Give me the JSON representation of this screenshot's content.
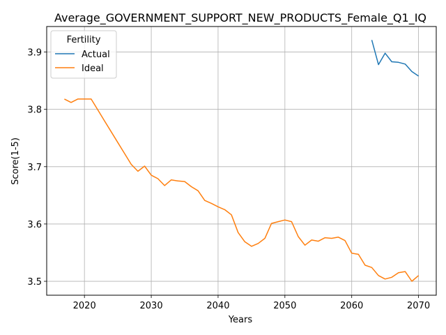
{
  "chart_data": {
    "type": "line",
    "title": "Average_GOVERNMENT_SUPPORT_NEW_PRODUCTS_Female_Q1_IQ",
    "xlabel": "Years",
    "ylabel": "Score(1-5)",
    "xlim": [
      2014.35,
      2072.65
    ],
    "ylim": [
      3.4757,
      3.9445
    ],
    "xticks": [
      2020,
      2030,
      2040,
      2050,
      2060,
      2070
    ],
    "yticks": [
      3.5,
      3.6,
      3.7,
      3.8,
      3.9
    ],
    "ytick_labels": [
      "3.5",
      "3.6",
      "3.7",
      "3.8",
      "3.9"
    ],
    "grid": true,
    "legend": {
      "title": "Fertility",
      "placement": "upper-left"
    },
    "series": [
      {
        "name": "Actual",
        "color": "#1f77b4",
        "x": [
          2063,
          2064,
          2065,
          2066,
          2067,
          2068,
          2069,
          2070
        ],
        "y": [
          3.921,
          3.878,
          3.898,
          3.883,
          3.882,
          3.879,
          3.866,
          3.858
        ]
      },
      {
        "name": "Ideal",
        "color": "#ff7f0e",
        "x": [
          2017,
          2018,
          2019,
          2020,
          2021,
          2022,
          2023,
          2024,
          2025,
          2026,
          2027,
          2028,
          2029,
          2030,
          2031,
          2032,
          2033,
          2034,
          2035,
          2036,
          2037,
          2038,
          2039,
          2040,
          2041,
          2042,
          2043,
          2044,
          2045,
          2046,
          2047,
          2048,
          2049,
          2050,
          2051,
          2052,
          2053,
          2054,
          2055,
          2056,
          2057,
          2058,
          2059,
          2060,
          2061,
          2062,
          2063,
          2064,
          2065,
          2066,
          2067,
          2068,
          2069,
          2070
        ],
        "y": [
          3.818,
          3.812,
          3.818,
          3.818,
          3.818,
          3.799,
          3.78,
          3.761,
          3.742,
          3.723,
          3.704,
          3.692,
          3.701,
          3.685,
          3.679,
          3.667,
          3.677,
          3.675,
          3.674,
          3.665,
          3.658,
          3.641,
          3.636,
          3.63,
          3.625,
          3.616,
          3.585,
          3.569,
          3.561,
          3.566,
          3.575,
          3.601,
          3.604,
          3.607,
          3.604,
          3.578,
          3.563,
          3.572,
          3.57,
          3.576,
          3.575,
          3.577,
          3.571,
          3.549,
          3.547,
          3.528,
          3.524,
          3.51,
          3.504,
          3.507,
          3.515,
          3.517,
          3.5,
          3.51
        ]
      }
    ]
  }
}
